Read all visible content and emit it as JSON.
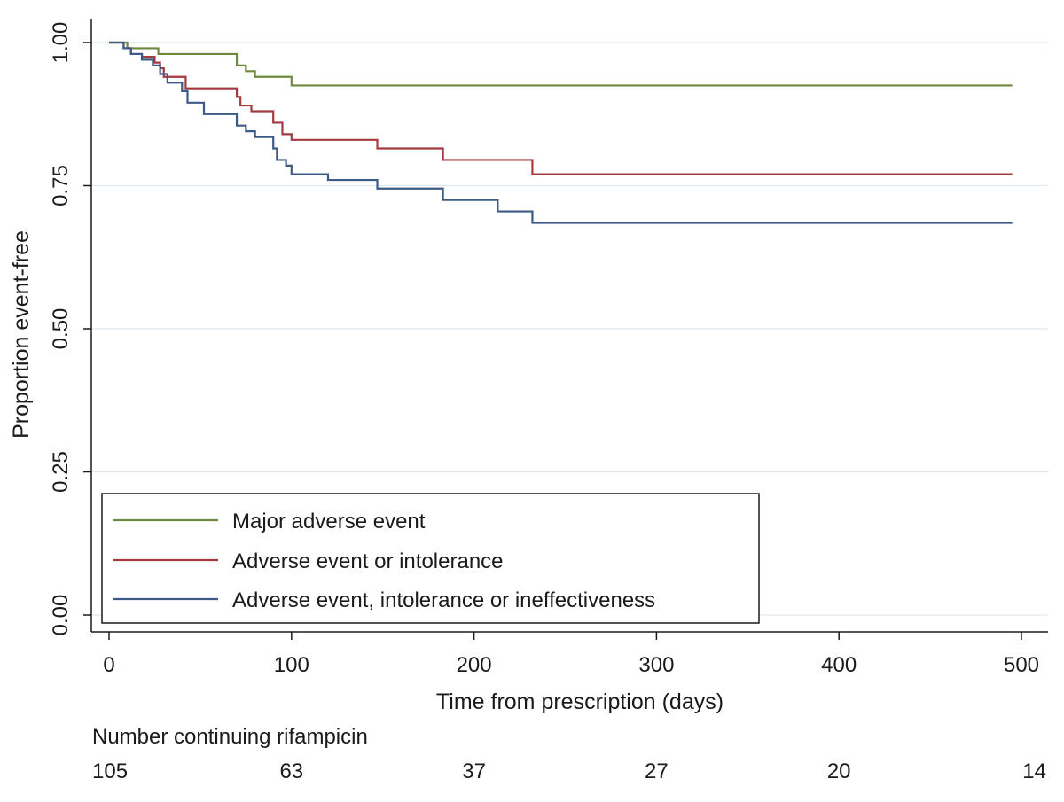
{
  "chart_data": {
    "type": "line",
    "step": true,
    "xlabel": "Time from prescription (days)",
    "ylabel": "Proportion event-free",
    "xlim": [
      0,
      500
    ],
    "ylim": [
      0,
      1
    ],
    "xticks": [
      0,
      100,
      200,
      300,
      400,
      500
    ],
    "yticks": [
      0.0,
      0.25,
      0.5,
      0.75,
      1.0
    ],
    "xtick_labels": [
      "0",
      "100",
      "200",
      "300",
      "400",
      "500"
    ],
    "ytick_labels": [
      "0.00",
      "0.25",
      "0.50",
      "0.75",
      "1.00"
    ],
    "grid": "horizontal",
    "legend_position": "bottom-left",
    "series": [
      {
        "name": "Major adverse event",
        "color": "#6e8a3e",
        "x": [
          0,
          10,
          27,
          70,
          75,
          80,
          100,
          495
        ],
        "y": [
          1.0,
          0.99,
          0.98,
          0.96,
          0.95,
          0.94,
          0.925,
          0.925
        ]
      },
      {
        "name": "Adverse event or intolerance",
        "color": "#a33a3f",
        "x": [
          0,
          8,
          12,
          18,
          25,
          28,
          30,
          42,
          70,
          72,
          78,
          90,
          95,
          100,
          147,
          183,
          232,
          495
        ],
        "y": [
          1.0,
          0.99,
          0.98,
          0.975,
          0.965,
          0.955,
          0.94,
          0.92,
          0.905,
          0.89,
          0.88,
          0.86,
          0.84,
          0.83,
          0.815,
          0.795,
          0.77,
          0.77
        ]
      },
      {
        "name": "Adverse event, intolerance or ineffectiveness",
        "color": "#3c5a85",
        "x": [
          0,
          8,
          12,
          18,
          24,
          28,
          32,
          40,
          43,
          52,
          70,
          75,
          80,
          90,
          92,
          97,
          100,
          120,
          147,
          183,
          213,
          232,
          495
        ],
        "y": [
          1.0,
          0.99,
          0.98,
          0.97,
          0.96,
          0.945,
          0.93,
          0.915,
          0.895,
          0.875,
          0.855,
          0.845,
          0.835,
          0.815,
          0.795,
          0.785,
          0.77,
          0.76,
          0.745,
          0.725,
          0.705,
          0.685,
          0.685
        ]
      }
    ],
    "risk_table": {
      "label": "Number continuing rifampicin",
      "x": [
        0,
        100,
        200,
        300,
        400,
        500
      ],
      "values": [
        "105",
        "63",
        "37",
        "27",
        "20",
        "14"
      ]
    }
  }
}
